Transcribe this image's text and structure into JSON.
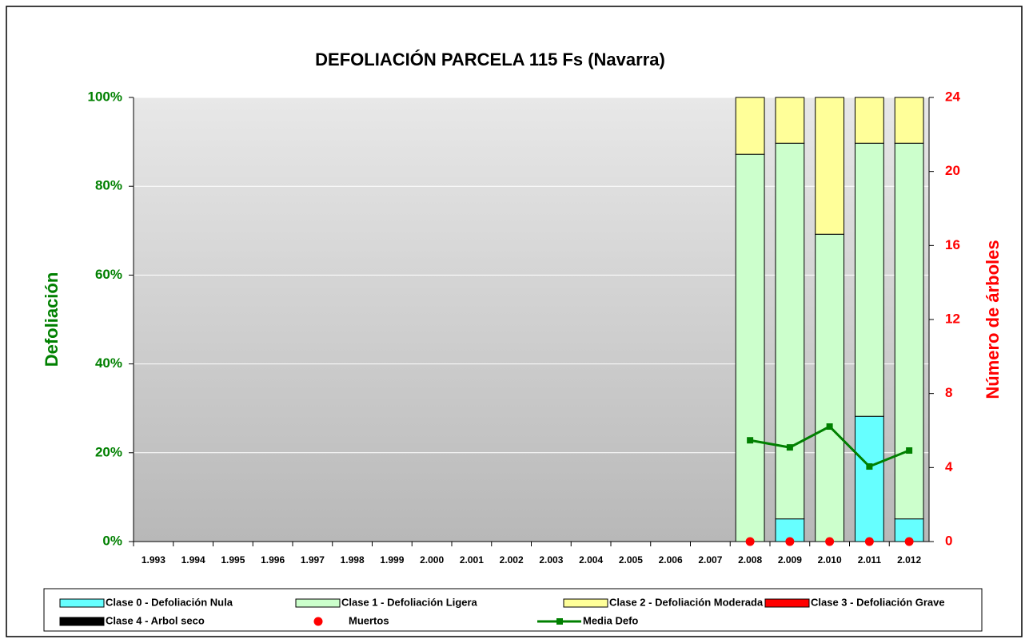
{
  "chart_data": {
    "type": "bar",
    "stacked": true,
    "title": "DEFOLIACIÓN PARCELA 115 Fs (Navarra)",
    "y_label": "Defoliación",
    "y2_label": "Número de árboles",
    "categories": [
      "1.993",
      "1.994",
      "1.995",
      "1.996",
      "1.997",
      "1.998",
      "1.999",
      "2.000",
      "2.001",
      "2.002",
      "2.003",
      "2.004",
      "2.005",
      "2.006",
      "2.007",
      "2.008",
      "2.009",
      "2.010",
      "2.011",
      "2.012"
    ],
    "ylim": [
      0,
      100
    ],
    "yticks": [
      {
        "value": 0,
        "label": "0%"
      },
      {
        "value": 20,
        "label": "20%"
      },
      {
        "value": 40,
        "label": "40%"
      },
      {
        "value": 60,
        "label": "60%"
      },
      {
        "value": 80,
        "label": "80%"
      },
      {
        "value": 100,
        "label": "100%"
      }
    ],
    "y2lim": [
      0,
      24
    ],
    "y2ticks": [
      0,
      4,
      8,
      12,
      16,
      20,
      24
    ],
    "grid": true,
    "legend": "bottom",
    "series": [
      {
        "name": "Clase 0 - Defoliación Nula",
        "color": "#66ffff",
        "values": [
          null,
          null,
          null,
          null,
          null,
          null,
          null,
          null,
          null,
          null,
          null,
          null,
          null,
          null,
          null,
          0,
          5.1,
          0,
          28.2,
          5.1
        ]
      },
      {
        "name": "Clase 1 - Defoliación Ligera",
        "color": "#ccffcc",
        "values": [
          null,
          null,
          null,
          null,
          null,
          null,
          null,
          null,
          null,
          null,
          null,
          null,
          null,
          null,
          null,
          87.2,
          84.6,
          69.2,
          61.5,
          84.6
        ]
      },
      {
        "name": "Clase 2 - Defoliación Moderada",
        "color": "#ffff99",
        "values": [
          null,
          null,
          null,
          null,
          null,
          null,
          null,
          null,
          null,
          null,
          null,
          null,
          null,
          null,
          null,
          12.8,
          10.3,
          30.8,
          10.3,
          10.3
        ]
      },
      {
        "name": "Clase 3 - Defoliación Grave",
        "color": "#ff0000",
        "values": [
          null,
          null,
          null,
          null,
          null,
          null,
          null,
          null,
          null,
          null,
          null,
          null,
          null,
          null,
          null,
          0,
          0,
          0,
          0,
          0
        ]
      },
      {
        "name": "Clase 4 - Arbol seco",
        "color": "#000000",
        "values": [
          null,
          null,
          null,
          null,
          null,
          null,
          null,
          null,
          null,
          null,
          null,
          null,
          null,
          null,
          null,
          0,
          0,
          0,
          0,
          0
        ]
      },
      {
        "name": "Muertos",
        "color": "#ff0000",
        "type": "scatter",
        "axis": "y2",
        "values": [
          null,
          null,
          null,
          null,
          null,
          null,
          null,
          null,
          null,
          null,
          null,
          null,
          null,
          null,
          null,
          0,
          0,
          0,
          0,
          0
        ]
      },
      {
        "name": "Media Defo",
        "color": "#008000",
        "type": "line",
        "values": [
          null,
          null,
          null,
          null,
          null,
          null,
          null,
          null,
          null,
          null,
          null,
          null,
          null,
          null,
          null,
          22.8,
          21.2,
          25.9,
          16.9,
          20.5
        ]
      }
    ]
  }
}
